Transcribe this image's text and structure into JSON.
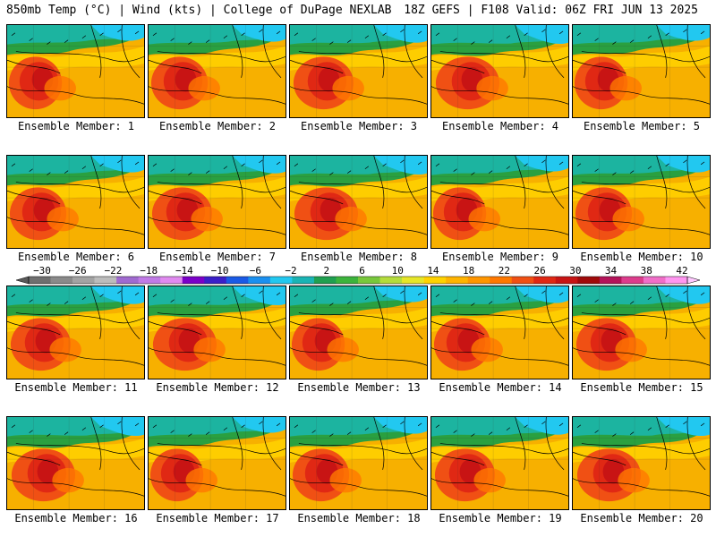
{
  "header": {
    "left": "850mb Temp (°C) | Wind (kts) | College of DuPage NEXLAB",
    "right": "18Z GEFS | F108 Valid: 06Z FRI JUN 13 2025"
  },
  "members": [
    "Ensemble Member: 1",
    "Ensemble Member: 2",
    "Ensemble Member: 3",
    "Ensemble Member: 4",
    "Ensemble Member: 5",
    "Ensemble Member: 6",
    "Ensemble Member: 7",
    "Ensemble Member: 8",
    "Ensemble Member: 9",
    "Ensemble Member: 10",
    "Ensemble Member: 11",
    "Ensemble Member: 12",
    "Ensemble Member: 13",
    "Ensemble Member: 14",
    "Ensemble Member: 15",
    "Ensemble Member: 16",
    "Ensemble Member: 17",
    "Ensemble Member: 18",
    "Ensemble Member: 19",
    "Ensemble Member: 20"
  ],
  "colorbar": {
    "labels": [
      "-30",
      "-26",
      "-22",
      "-18",
      "-14",
      "-10",
      "-6",
      "-2",
      "2",
      "6",
      "10",
      "14",
      "18",
      "22",
      "26",
      "30",
      "34",
      "38",
      "42"
    ],
    "colors": [
      "#6f6f6f",
      "#8a8a8a",
      "#a3a3a3",
      "#bcbcbc",
      "#a06ad0",
      "#c07ae6",
      "#e08af0",
      "#7a00c8",
      "#3a1fc8",
      "#1a5ae6",
      "#1a90f0",
      "#22c8f0",
      "#1ab4b4",
      "#20a050",
      "#3cb43c",
      "#78c83c",
      "#b4dc3c",
      "#e6e628",
      "#ffd200",
      "#ffb400",
      "#ff9600",
      "#ff7800",
      "#f05014",
      "#e02814",
      "#c81414",
      "#a00a0a",
      "#b4145a",
      "#dc3c8c",
      "#f06ec8",
      "#ff96f0"
    ]
  }
}
